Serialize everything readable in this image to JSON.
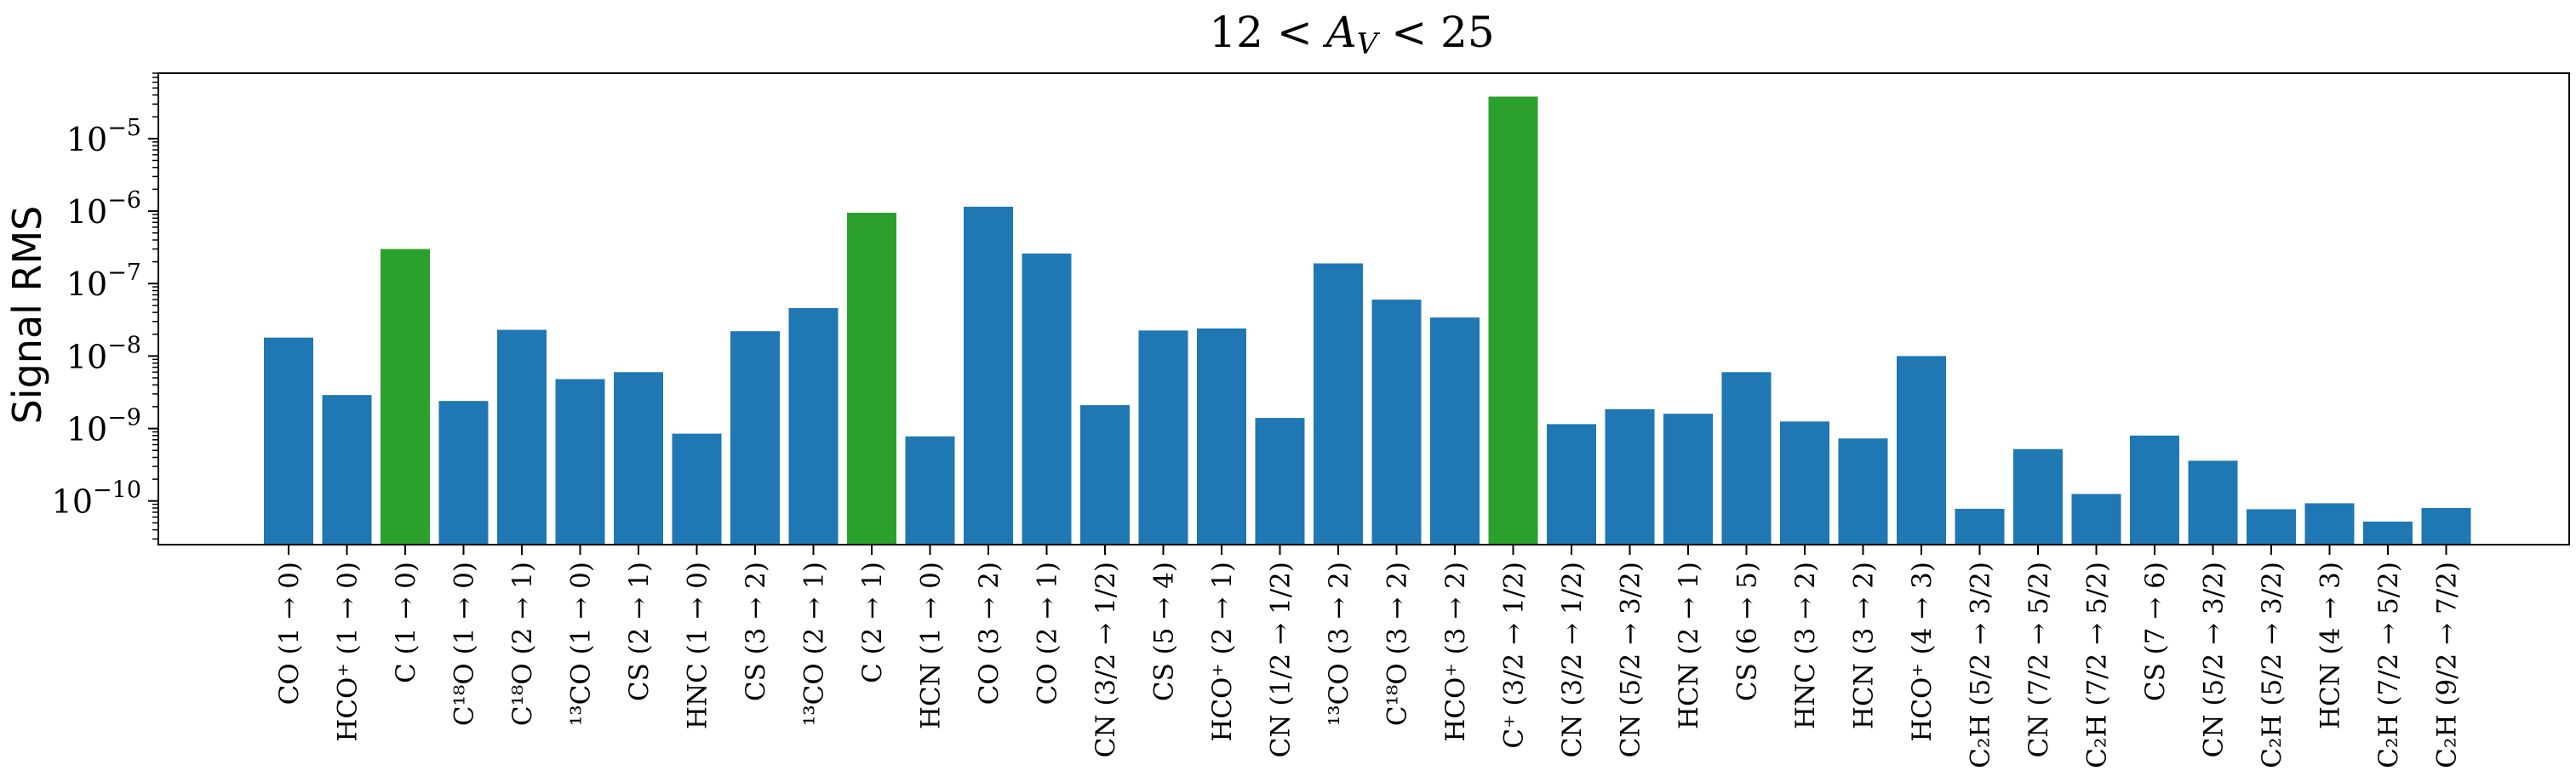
{
  "chart_data": {
    "type": "bar",
    "title": "12 < A_V < 25",
    "xlabel": "",
    "ylabel": "Signal RMS",
    "yscale": "log",
    "ylim": [
      2.5e-11,
      8e-05
    ],
    "yticks": [
      {
        "value": 1e-10,
        "base": "10",
        "exp": "−10"
      },
      {
        "value": 1e-09,
        "base": "10",
        "exp": "−9"
      },
      {
        "value": 1e-08,
        "base": "10",
        "exp": "−8"
      },
      {
        "value": 1e-07,
        "base": "10",
        "exp": "−7"
      },
      {
        "value": 1e-06,
        "base": "10",
        "exp": "−6"
      },
      {
        "value": 1e-05,
        "base": "10",
        "exp": "−5"
      }
    ],
    "colors": {
      "default": "#1f77b4",
      "highlight": "#2ca02c"
    },
    "grid": false,
    "categories": [
      "CO (1 → 0)",
      "HCO⁺ (1 → 0)",
      "C (1 → 0)",
      "C¹⁸O (1 → 0)",
      "C¹⁸O (2 → 1)",
      "¹³CO (1 → 0)",
      "CS (2 → 1)",
      "HNC (1 → 0)",
      "CS (3 → 2)",
      "¹³CO (2 → 1)",
      "C (2 → 1)",
      "HCN (1 → 0)",
      "CO (3 → 2)",
      "CO (2 → 1)",
      "CN (3/2 → 1/2)",
      "CS (5 → 4)",
      "HCO⁺ (2 → 1)",
      "CN (1/2 → 1/2)",
      "¹³CO (3 → 2)",
      "C¹⁸O (3 → 2)",
      "HCO⁺ (3 → 2)",
      "C⁺ (3/2 → 1/2)",
      "CN (3/2 → 1/2)",
      "CN (5/2 → 3/2)",
      "HCN (2 → 1)",
      "CS (6 → 5)",
      "HNC (3 → 2)",
      "HCN (3 → 2)",
      "HCO⁺ (4 → 3)",
      "C₂H (5/2 → 3/2)",
      "CN (7/2 → 5/2)",
      "C₂H (7/2 → 5/2)",
      "CS (7 → 6)",
      "CN (5/2 → 3/2)",
      "C₂H (5/2 → 3/2)",
      "HCN (4 → 3)",
      "C₂H (7/2 → 5/2)",
      "C₂H (9/2 → 7/2)"
    ],
    "values": [
      1.8e-08,
      2.9e-09,
      3e-07,
      2.4e-09,
      2.3e-08,
      4.8e-09,
      6e-09,
      8.5e-10,
      2.2e-08,
      4.6e-08,
      9.5e-07,
      7.8e-10,
      1.15e-06,
      2.6e-07,
      2.1e-09,
      2.25e-08,
      2.4e-08,
      1.4e-09,
      1.9e-07,
      6e-08,
      3.4e-08,
      3.8e-05,
      1.15e-09,
      1.85e-09,
      1.6e-09,
      6e-09,
      1.25e-09,
      7.3e-10,
      1e-08,
      7.8e-11,
      5.2e-10,
      1.25e-10,
      8e-10,
      3.6e-10,
      7.7e-11,
      9.3e-11,
      5.2e-11,
      8e-11
    ],
    "highlight_categories": [
      "C (1 → 0)",
      "C (2 → 1)",
      "C⁺ (3/2 → 1/2)"
    ]
  }
}
